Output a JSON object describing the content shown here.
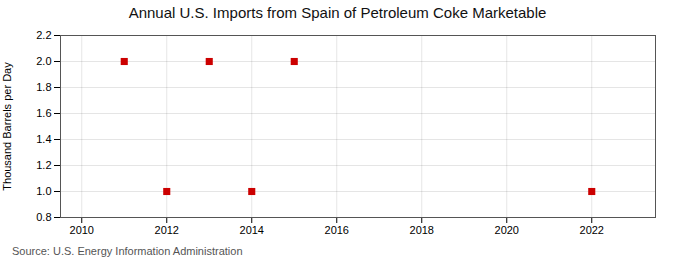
{
  "chart_data": {
    "type": "scatter",
    "title": "Annual U.S. Imports from Spain of Petroleum Coke Marketable",
    "ylabel": "Thousand Barrels per Day",
    "source": "Source: U.S. Energy Information Administration",
    "x": [
      2011,
      2012,
      2013,
      2014,
      2015,
      2022
    ],
    "values": [
      2.0,
      1.0,
      2.0,
      1.0,
      2.0,
      1.0
    ],
    "color": "#cc0000",
    "marker": "square",
    "xlim": [
      2009.5,
      2023.5
    ],
    "xticks": [
      2010,
      2012,
      2014,
      2016,
      2018,
      2020,
      2022
    ],
    "ylim": [
      0.8,
      2.2
    ],
    "yticks": [
      0.8,
      {
        "value": 1.0,
        "label": "1.0"
      },
      1.2,
      1.4,
      1.6,
      1.8,
      {
        "value": 2.0,
        "label": "2.0"
      },
      2.2
    ],
    "grid": true
  }
}
